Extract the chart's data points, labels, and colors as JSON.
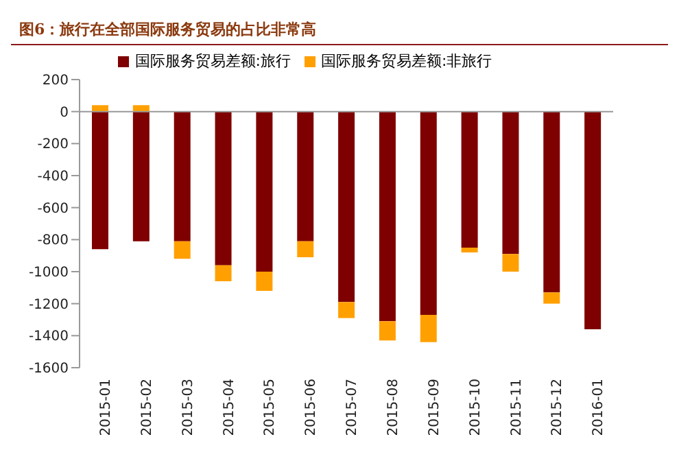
{
  "chart_data": {
    "type": "bar",
    "title": "图6：旅行在全部国际服务贸易的占比非常高",
    "categories": [
      "2015-01",
      "2015-02",
      "2015-03",
      "2015-04",
      "2015-05",
      "2015-06",
      "2015-07",
      "2015-08",
      "2015-09",
      "2015-10",
      "2015-11",
      "2015-12",
      "2016-01"
    ],
    "series": [
      {
        "name": "国际服务贸易差额:旅行",
        "color": "#7f0000",
        "values": [
          -860,
          -810,
          -810,
          -960,
          -1000,
          -810,
          -1190,
          -1310,
          -1270,
          -850,
          -890,
          -1130,
          -1360
        ]
      },
      {
        "name": "国际服务贸易差额:非旅行",
        "color": "#ffa000",
        "values": [
          40,
          40,
          -110,
          -100,
          -120,
          -100,
          -100,
          -120,
          -170,
          -30,
          -110,
          -70,
          0
        ]
      }
    ],
    "stacked": true,
    "ylim": [
      -1600,
      200
    ],
    "yticks": [
      -1600,
      -1400,
      -1200,
      -1000,
      -800,
      -600,
      -400,
      -200,
      0,
      200
    ],
    "legend": "top"
  }
}
